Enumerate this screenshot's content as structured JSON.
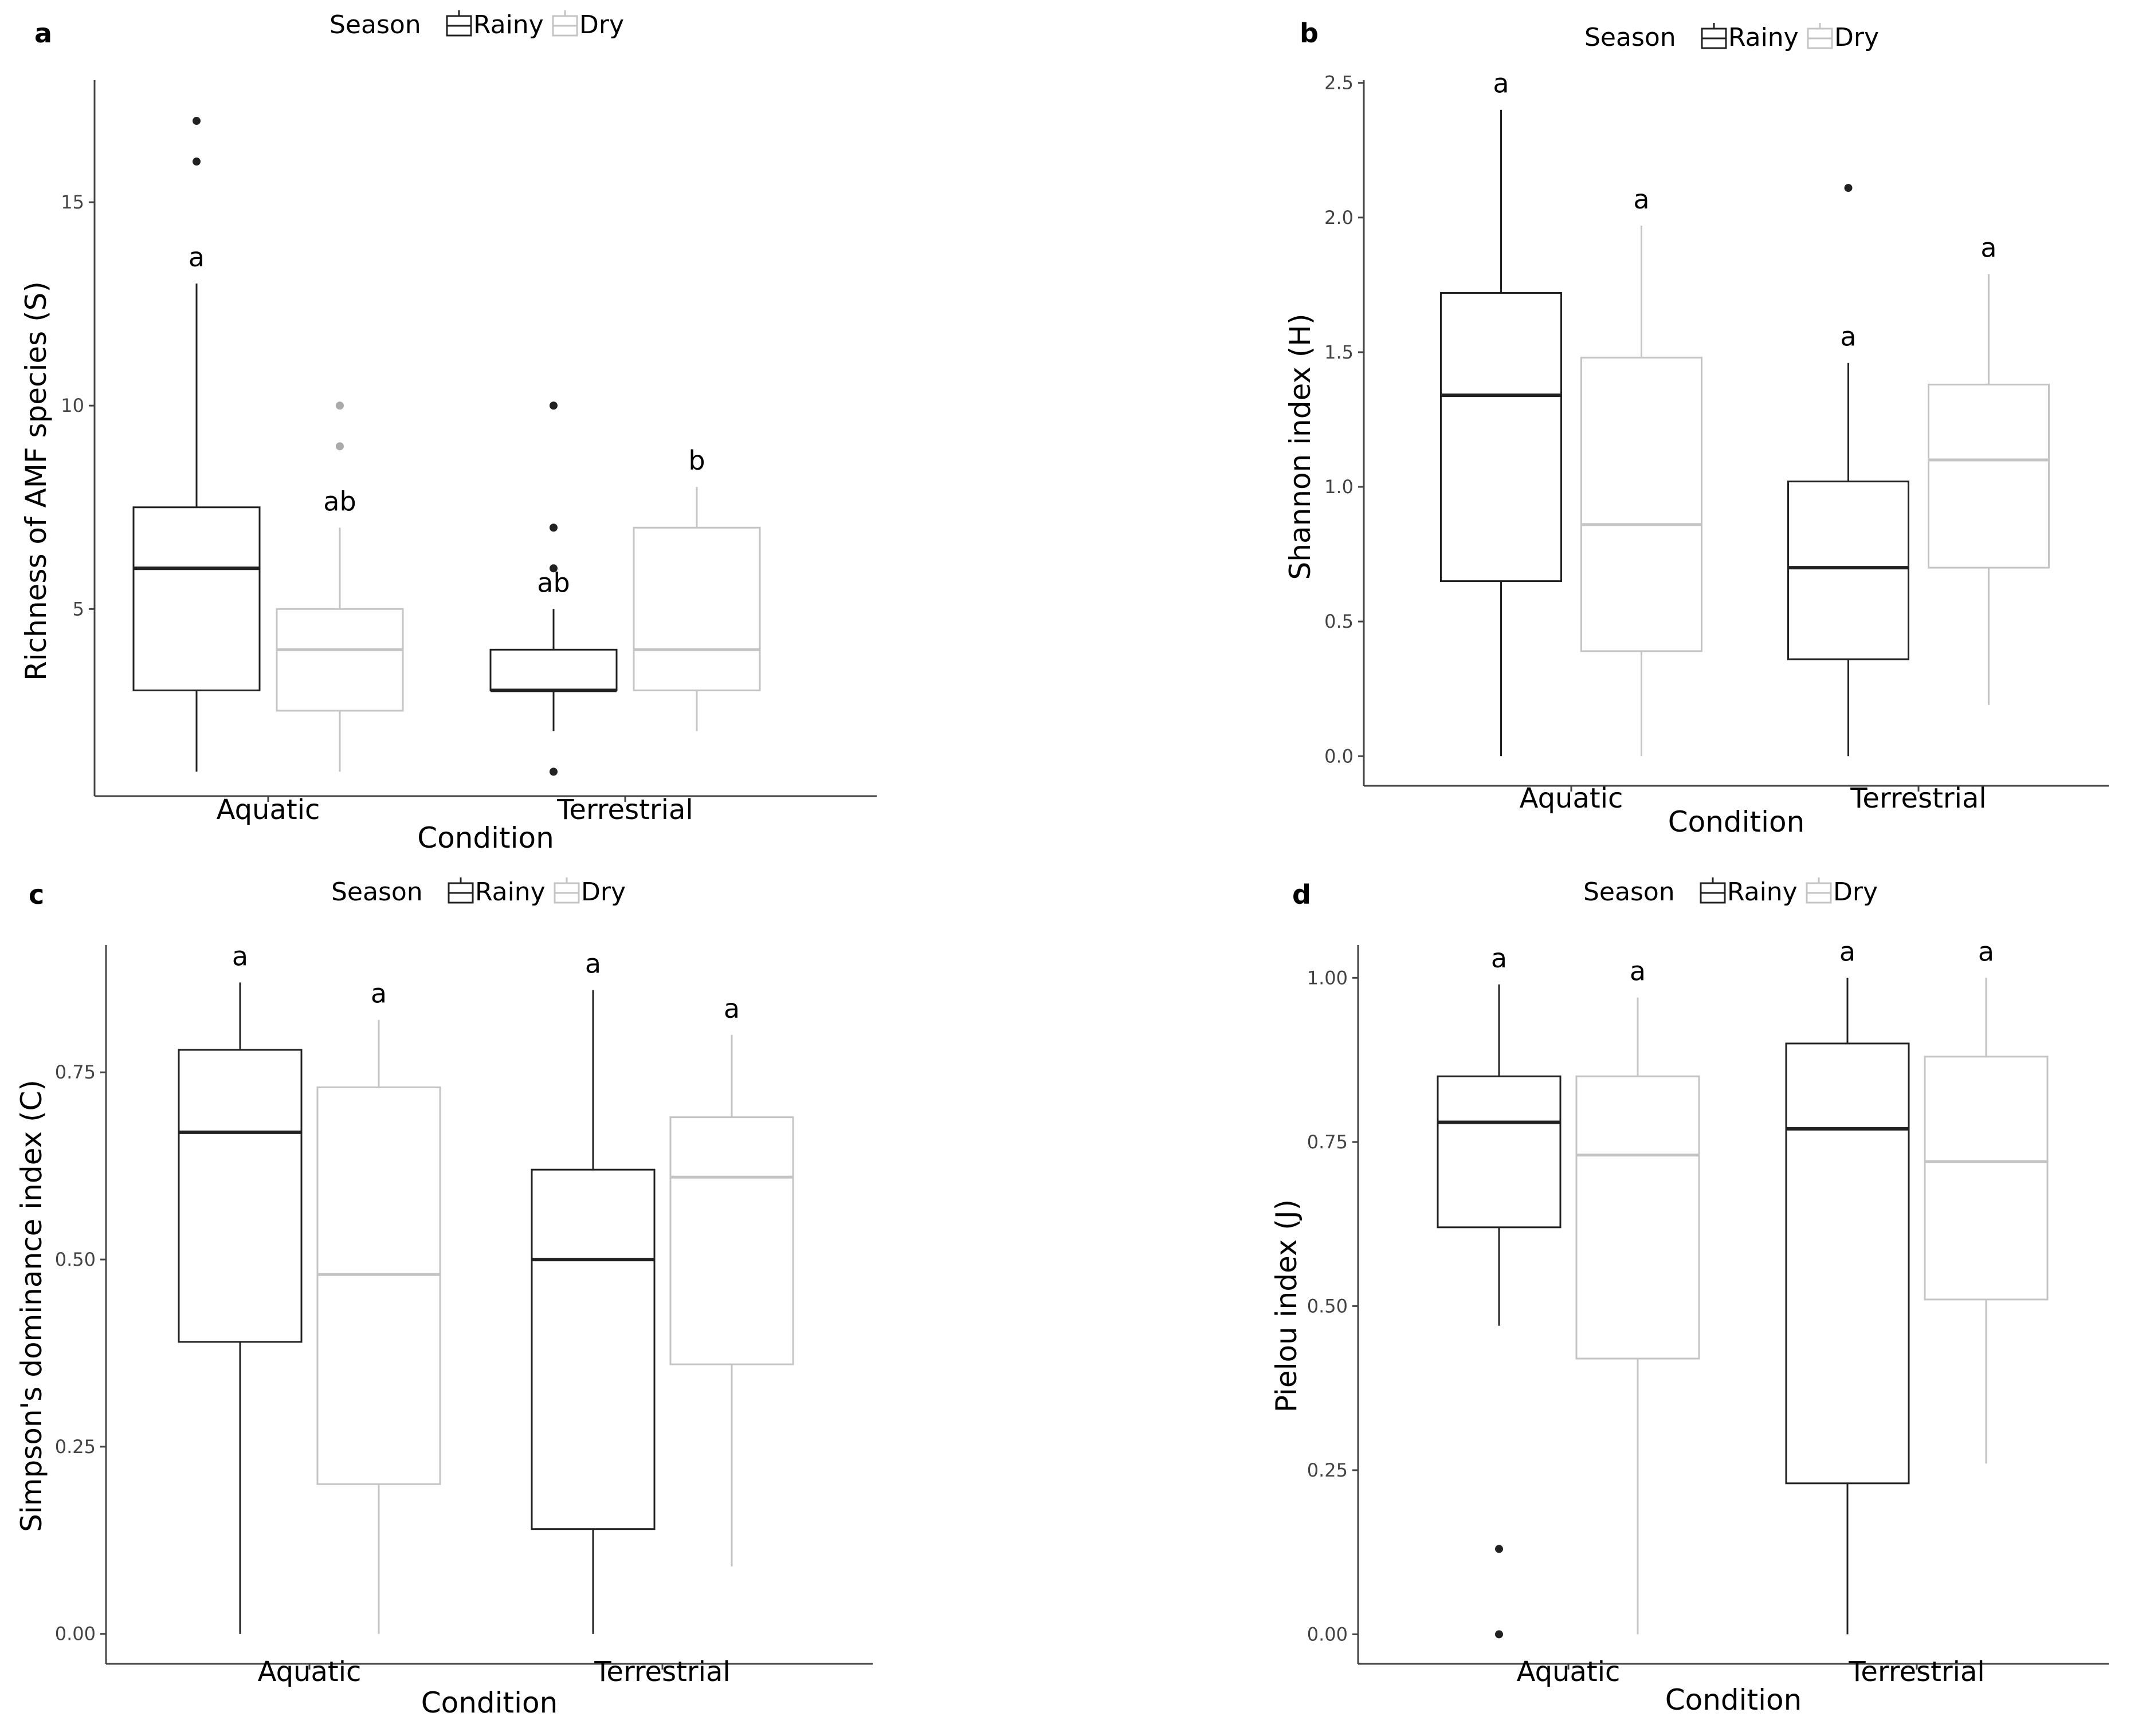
{
  "colors": {
    "Rainy": "#222222",
    "Dry": "#c4c4c4",
    "outlier_Dry": "#aaaaaa",
    "axis": "#444444",
    "background": "#ffffff"
  },
  "chart_data": [
    {
      "panel": "a",
      "type": "box",
      "title": "",
      "legend": {
        "title": "Season",
        "entries": [
          "Rainy",
          "Dry"
        ],
        "position": "top"
      },
      "xlabel": "Condition",
      "ylabel": "Richness of AMF species (S)",
      "categories": [
        "Aquatic",
        "Terrestrial"
      ],
      "ylim": [
        0.4,
        18.0
      ],
      "yticks": [
        5,
        10,
        15
      ],
      "ytick_labels": [
        "5",
        "10",
        "15"
      ],
      "series": [
        {
          "name": "Rainy",
          "boxes": [
            {
              "category": "Aquatic",
              "min": 1,
              "q1": 3,
              "median": 6,
              "q3": 7.5,
              "max": 13,
              "outliers": [
                16,
                17
              ],
              "letter": "a"
            },
            {
              "category": "Terrestrial",
              "min": 2,
              "q1": 3,
              "median": 3,
              "q3": 4,
              "max": 5,
              "outliers": [
                1,
                6,
                7,
                10
              ],
              "letter": "ab"
            }
          ]
        },
        {
          "name": "Dry",
          "boxes": [
            {
              "category": "Aquatic",
              "min": 1,
              "q1": 2.5,
              "median": 4,
              "q3": 5,
              "max": 7,
              "outliers": [
                9,
                10
              ],
              "letter": "ab"
            },
            {
              "category": "Terrestrial",
              "min": 2,
              "q1": 3,
              "median": 4,
              "q3": 7,
              "max": 8,
              "outliers": [],
              "letter": "b"
            }
          ]
        }
      ]
    },
    {
      "panel": "b",
      "type": "box",
      "title": "",
      "legend": {
        "title": "Season",
        "entries": [
          "Rainy",
          "Dry"
        ],
        "position": "top"
      },
      "xlabel": "Condition",
      "ylabel": "Shannon index (H)",
      "categories": [
        "Aquatic",
        "Terrestrial"
      ],
      "ylim": [
        -0.11,
        2.51
      ],
      "yticks": [
        0,
        0.5,
        1.0,
        1.5,
        2.0,
        2.5
      ],
      "ytick_labels": [
        "0.0",
        "0.5",
        "1.0",
        "1.5",
        "2.0",
        "2.5"
      ],
      "series": [
        {
          "name": "Rainy",
          "boxes": [
            {
              "category": "Aquatic",
              "min": 0,
              "q1": 0.65,
              "median": 1.34,
              "q3": 1.72,
              "max": 2.4,
              "outliers": [],
              "letter": "a"
            },
            {
              "category": "Terrestrial",
              "min": 0,
              "q1": 0.36,
              "median": 0.7,
              "q3": 1.02,
              "max": 1.46,
              "outliers": [
                2.11
              ],
              "letter": "a"
            }
          ]
        },
        {
          "name": "Dry",
          "boxes": [
            {
              "category": "Aquatic",
              "min": 0,
              "q1": 0.39,
              "median": 0.86,
              "q3": 1.48,
              "max": 1.97,
              "outliers": [],
              "letter": "a"
            },
            {
              "category": "Terrestrial",
              "min": 0.19,
              "q1": 0.7,
              "median": 1.1,
              "q3": 1.38,
              "max": 1.79,
              "outliers": [],
              "letter": "a"
            }
          ]
        }
      ]
    },
    {
      "panel": "c",
      "type": "box",
      "title": "",
      "legend": {
        "title": "Season",
        "entries": [
          "Rainy",
          "Dry"
        ],
        "position": "top"
      },
      "xlabel": "Condition",
      "ylabel": "Simpson's dominance index (C)",
      "categories": [
        "Aquatic",
        "Terrestrial"
      ],
      "ylim": [
        -0.04,
        0.92
      ],
      "yticks": [
        0,
        0.25,
        0.5,
        0.75
      ],
      "ytick_labels": [
        "0.00",
        "0.25",
        "0.50",
        "0.75"
      ],
      "series": [
        {
          "name": "Rainy",
          "boxes": [
            {
              "category": "Aquatic",
              "min": 0,
              "q1": 0.39,
              "median": 0.67,
              "q3": 0.78,
              "max": 0.87,
              "outliers": [],
              "letter": "a"
            },
            {
              "category": "Terrestrial",
              "min": 0,
              "q1": 0.14,
              "median": 0.5,
              "q3": 0.62,
              "max": 0.86,
              "outliers": [],
              "letter": "a"
            }
          ]
        },
        {
          "name": "Dry",
          "boxes": [
            {
              "category": "Aquatic",
              "min": 0,
              "q1": 0.2,
              "median": 0.48,
              "q3": 0.73,
              "max": 0.82,
              "outliers": [],
              "letter": "a"
            },
            {
              "category": "Terrestrial",
              "min": 0.09,
              "q1": 0.36,
              "median": 0.61,
              "q3": 0.69,
              "max": 0.8,
              "outliers": [],
              "letter": "a"
            }
          ]
        }
      ]
    },
    {
      "panel": "d",
      "type": "box",
      "title": "",
      "legend": {
        "title": "Season",
        "entries": [
          "Rainy",
          "Dry"
        ],
        "position": "top"
      },
      "xlabel": "Condition",
      "ylabel": "Pielou index (J)",
      "categories": [
        "Aquatic",
        "Terrestrial"
      ],
      "ylim": [
        -0.045,
        1.05
      ],
      "yticks": [
        0,
        0.25,
        0.5,
        0.75,
        1.0
      ],
      "ytick_labels": [
        "0.00",
        "0.25",
        "0.50",
        "0.75",
        "1.00"
      ],
      "series": [
        {
          "name": "Rainy",
          "boxes": [
            {
              "category": "Aquatic",
              "min": 0.47,
              "q1": 0.62,
              "median": 0.78,
              "q3": 0.85,
              "max": 0.99,
              "outliers": [
                0.13,
                0
              ],
              "letter": "a"
            },
            {
              "category": "Terrestrial",
              "min": 0,
              "q1": 0.23,
              "median": 0.77,
              "q3": 0.9,
              "max": 1.0,
              "outliers": [],
              "letter": "a"
            }
          ]
        },
        {
          "name": "Dry",
          "boxes": [
            {
              "category": "Aquatic",
              "min": 0,
              "q1": 0.42,
              "median": 0.73,
              "q3": 0.85,
              "max": 0.97,
              "outliers": [],
              "letter": "a"
            },
            {
              "category": "Terrestrial",
              "min": 0.26,
              "q1": 0.51,
              "median": 0.72,
              "q3": 0.88,
              "max": 1.0,
              "outliers": [],
              "letter": "a"
            }
          ]
        }
      ]
    }
  ]
}
